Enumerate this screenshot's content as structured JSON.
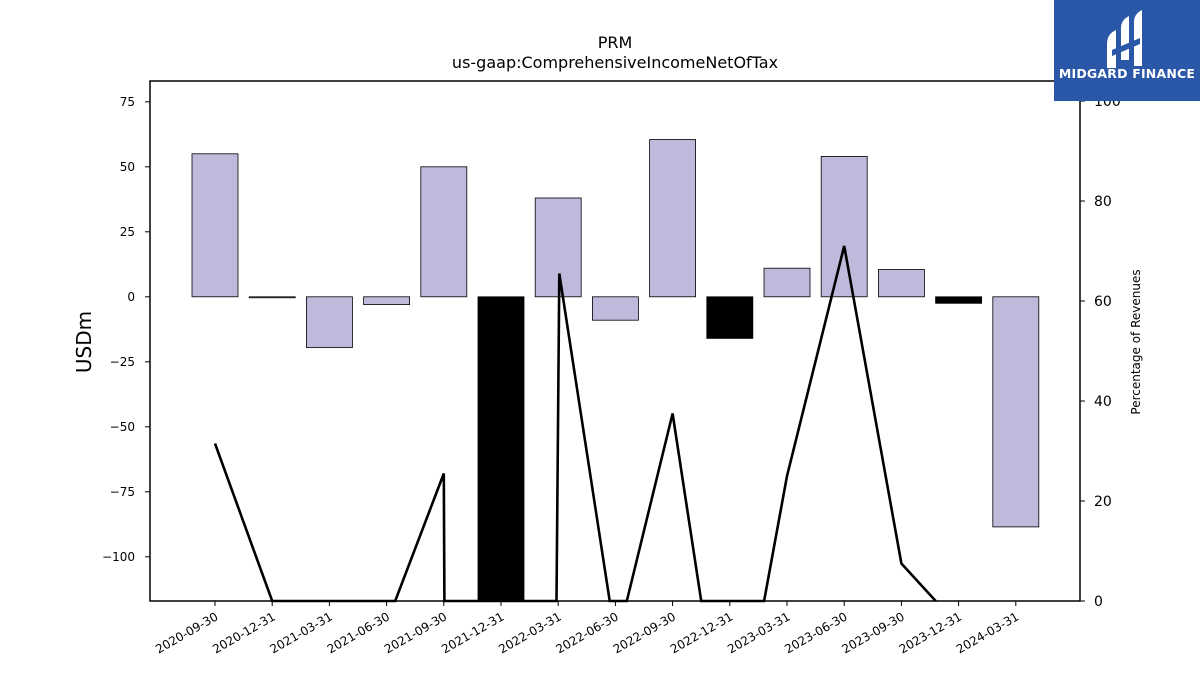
{
  "chart_data": {
    "type": "bar",
    "title": "PRM",
    "subtitle": "us-gaap:ComprehensiveIncomeNetOfTax",
    "ylabel": "USDm",
    "y2label": "Percentage of Revenues",
    "ylim": [
      -117,
      83
    ],
    "y2lim": [
      0,
      104
    ],
    "yticks": [
      75,
      50,
      25,
      0,
      -25,
      -50,
      -75,
      -100
    ],
    "y2ticks": [
      0,
      20,
      40,
      60,
      80,
      100
    ],
    "categories": [
      "2020-09-30",
      "2020-12-31",
      "2021-03-31",
      "2021-06-30",
      "2021-09-30",
      "2021-12-31",
      "2022-03-31",
      "2022-06-30",
      "2022-09-30",
      "2022-12-31",
      "2023-03-31",
      "2023-06-30",
      "2023-09-30",
      "2023-12-31",
      "2024-03-31"
    ],
    "series": [
      {
        "kind": "bar",
        "values": [
          55,
          0,
          -19.5,
          -3,
          50,
          -117,
          38,
          -9,
          60.5,
          -16,
          11,
          54,
          10.5,
          -2.5,
          -88.5
        ],
        "highlight": [
          false,
          false,
          false,
          false,
          false,
          true,
          false,
          false,
          false,
          true,
          false,
          false,
          false,
          true,
          false
        ],
        "color": "#bdbadb",
        "highlight_color": "#000000"
      },
      {
        "kind": "line",
        "axis": "right",
        "points": [
          {
            "x": 0,
            "y": 31.5
          },
          {
            "x": 1,
            "y": 0
          },
          {
            "x": 3.15,
            "y": 0
          },
          {
            "x": 4,
            "y": 25.5
          },
          {
            "x": 4.01,
            "y": 0
          },
          {
            "x": 5.97,
            "y": 0
          },
          {
            "x": 6.02,
            "y": 65.5
          },
          {
            "x": 6.9,
            "y": 0
          },
          {
            "x": 7.2,
            "y": 0
          },
          {
            "x": 8,
            "y": 37.5
          },
          {
            "x": 8.5,
            "y": 0
          },
          {
            "x": 9.6,
            "y": 0
          },
          {
            "x": 10,
            "y": 25
          },
          {
            "x": 11,
            "y": 71
          },
          {
            "x": 12,
            "y": 7.5
          },
          {
            "x": 12.6,
            "y": 0
          }
        ],
        "color": "#000000"
      }
    ],
    "grid": false,
    "legend": "none"
  },
  "logo": {
    "text": "MIDGARD FINANCE",
    "background": "#2b57a8"
  }
}
